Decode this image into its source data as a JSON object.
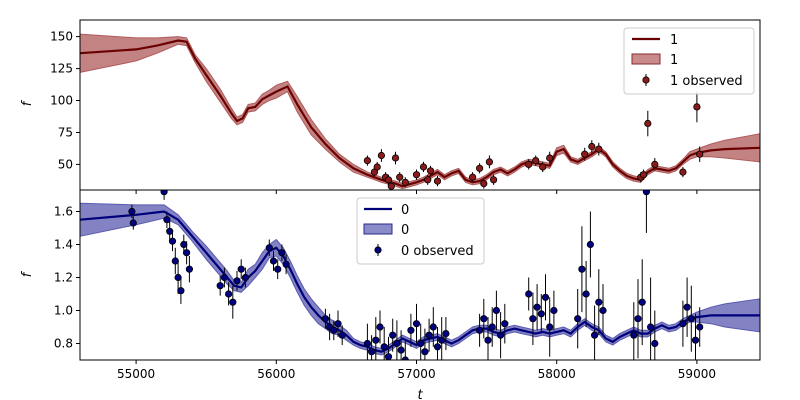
{
  "chart_data": [
    {
      "type": "line",
      "panel": "top",
      "xlabel": "",
      "ylabel": "f",
      "xlim": [
        54600,
        59450
      ],
      "ylim": [
        30,
        163
      ],
      "yticks": [
        50,
        75,
        100,
        125,
        150
      ],
      "grid": false,
      "legend_position": "top-right",
      "legend": {
        "line": "1",
        "band": "1",
        "points": "1 observed"
      },
      "colors": {
        "line": "#6b0000",
        "band": "#b05a5a",
        "points": "#8b1a1a"
      },
      "mean": {
        "x": [
          54600,
          55000,
          55150,
          55300,
          55360,
          55420,
          55500,
          55600,
          55680,
          55720,
          55760,
          55800,
          55850,
          55900,
          55950,
          56000,
          56080,
          56150,
          56250,
          56350,
          56450,
          56550,
          56650,
          56750,
          56850,
          56900,
          57000,
          57050,
          57100,
          57150,
          57200,
          57250,
          57300,
          57350,
          57400,
          57450,
          57500,
          57550,
          57600,
          57650,
          57700,
          57750,
          57800,
          57850,
          57900,
          57950,
          58000,
          58050,
          58100,
          58150,
          58200,
          58250,
          58300,
          58350,
          58400,
          58450,
          58500,
          58550,
          58600,
          58650,
          58700,
          58750,
          58800,
          58850,
          58900,
          58950,
          59000,
          59100,
          59200,
          59450
        ],
        "y": [
          137,
          140,
          143,
          147,
          146,
          133,
          120,
          104,
          90,
          84,
          86,
          94,
          95,
          101,
          104,
          107,
          111,
          97,
          79,
          66,
          55,
          47,
          42,
          38,
          35,
          33,
          36,
          38,
          41,
          44,
          40,
          43,
          45,
          38,
          36,
          37,
          40,
          44,
          46,
          43,
          46,
          50,
          52,
          51,
          50,
          49,
          60,
          62,
          54,
          52,
          55,
          58,
          62,
          58,
          50,
          45,
          41,
          39,
          38,
          44,
          47,
          46,
          45,
          47,
          52,
          57,
          59,
          61,
          62,
          63
        ]
      },
      "band_halfwidth": [
        15,
        9,
        6,
        3,
        3,
        3,
        5,
        5,
        4,
        3,
        3,
        3,
        3,
        4,
        4,
        5,
        4,
        6,
        6,
        4,
        3,
        3,
        2,
        2,
        2,
        2,
        2,
        2,
        2,
        2,
        2,
        2,
        2,
        2,
        2,
        2,
        2,
        2,
        2,
        2,
        2,
        2,
        2,
        2,
        2,
        2,
        3,
        3,
        2,
        2,
        2,
        2,
        2,
        2,
        2,
        2,
        2,
        2,
        2,
        2,
        2,
        2,
        2,
        2,
        2,
        3,
        3,
        5,
        7,
        11
      ],
      "observed": {
        "x": [
          56650,
          56700,
          56720,
          56750,
          56780,
          56800,
          56820,
          56850,
          56880,
          56920,
          57000,
          57050,
          57080,
          57100,
          57150,
          57400,
          57450,
          57480,
          57520,
          57550,
          57800,
          57850,
          57900,
          57950,
          58200,
          58250,
          58300,
          58600,
          58620,
          58650,
          58700,
          58900,
          59000,
          59020
        ],
        "y": [
          53,
          44,
          48,
          57,
          40,
          38,
          33,
          55,
          40,
          36,
          42,
          48,
          38,
          45,
          37,
          40,
          47,
          35,
          52,
          38,
          50,
          53,
          48,
          55,
          58,
          64,
          62,
          40,
          42,
          82,
          50,
          44,
          95,
          58
        ],
        "err": [
          4,
          4,
          4,
          5,
          4,
          4,
          4,
          5,
          4,
          4,
          4,
          4,
          4,
          4,
          4,
          4,
          4,
          4,
          5,
          4,
          4,
          4,
          4,
          5,
          5,
          5,
          5,
          4,
          4,
          10,
          5,
          4,
          12,
          6
        ]
      }
    },
    {
      "type": "line",
      "panel": "bottom",
      "xlabel": "t",
      "ylabel": "f",
      "xlim": [
        54600,
        59450
      ],
      "ylim": [
        0.7,
        1.73
      ],
      "yticks": [
        0.8,
        1.0,
        1.2,
        1.4,
        1.6
      ],
      "xticks": [
        55000,
        56000,
        57000,
        58000,
        59000
      ],
      "grid": false,
      "legend_position": "upper-center",
      "legend": {
        "line": "0",
        "band": "0",
        "points": "0 observed"
      },
      "colors": {
        "line": "#00007a",
        "band": "#5a5ab0",
        "points": "#000080"
      },
      "mean": {
        "x": [
          54600,
          55000,
          55200,
          55300,
          55350,
          55400,
          55500,
          55600,
          55650,
          55700,
          55750,
          55800,
          55850,
          55900,
          55950,
          56000,
          56050,
          56100,
          56150,
          56200,
          56250,
          56300,
          56350,
          56400,
          56450,
          56500,
          56550,
          56600,
          56650,
          56700,
          56750,
          56800,
          56850,
          56900,
          56950,
          57000,
          57050,
          57100,
          57150,
          57200,
          57250,
          57300,
          57350,
          57400,
          57450,
          57500,
          57550,
          57600,
          57650,
          57700,
          57750,
          57800,
          57850,
          57900,
          57950,
          58000,
          58050,
          58100,
          58150,
          58200,
          58250,
          58300,
          58350,
          58400,
          58450,
          58500,
          58550,
          58600,
          58650,
          58700,
          58750,
          58800,
          58850,
          58900,
          58950,
          59000,
          59100,
          59200,
          59450
        ],
        "y": [
          1.55,
          1.58,
          1.6,
          1.55,
          1.5,
          1.45,
          1.35,
          1.25,
          1.2,
          1.15,
          1.14,
          1.2,
          1.24,
          1.3,
          1.36,
          1.38,
          1.33,
          1.25,
          1.16,
          1.08,
          1.02,
          0.97,
          0.93,
          0.9,
          0.88,
          0.85,
          0.81,
          0.79,
          0.78,
          0.76,
          0.75,
          0.77,
          0.8,
          0.83,
          0.81,
          0.79,
          0.82,
          0.83,
          0.84,
          0.82,
          0.8,
          0.82,
          0.85,
          0.88,
          0.89,
          0.89,
          0.87,
          0.86,
          0.88,
          0.89,
          0.88,
          0.87,
          0.86,
          0.87,
          0.86,
          0.87,
          0.88,
          0.86,
          0.9,
          0.93,
          0.9,
          0.88,
          0.83,
          0.81,
          0.84,
          0.86,
          0.88,
          0.86,
          0.86,
          0.89,
          0.91,
          0.89,
          0.9,
          0.93,
          0.95,
          0.96,
          0.97,
          0.97,
          0.97
        ]
      },
      "band_halfwidth": [
        0.1,
        0.06,
        0.04,
        0.03,
        0.03,
        0.03,
        0.04,
        0.04,
        0.04,
        0.03,
        0.03,
        0.05,
        0.04,
        0.05,
        0.04,
        0.05,
        0.05,
        0.05,
        0.05,
        0.05,
        0.05,
        0.05,
        0.04,
        0.04,
        0.03,
        0.03,
        0.02,
        0.02,
        0.02,
        0.02,
        0.02,
        0.02,
        0.02,
        0.02,
        0.02,
        0.02,
        0.02,
        0.02,
        0.02,
        0.02,
        0.02,
        0.02,
        0.02,
        0.02,
        0.02,
        0.02,
        0.02,
        0.02,
        0.02,
        0.02,
        0.02,
        0.02,
        0.02,
        0.02,
        0.02,
        0.02,
        0.02,
        0.02,
        0.02,
        0.02,
        0.02,
        0.02,
        0.02,
        0.02,
        0.02,
        0.02,
        0.02,
        0.02,
        0.02,
        0.02,
        0.02,
        0.02,
        0.02,
        0.02,
        0.02,
        0.03,
        0.05,
        0.07,
        0.1
      ],
      "observed": {
        "x": [
          54970,
          54980,
          55200,
          55220,
          55240,
          55260,
          55280,
          55300,
          55320,
          55340,
          55360,
          55380,
          55600,
          55630,
          55660,
          55690,
          55720,
          55750,
          55780,
          55950,
          55980,
          56010,
          56040,
          56070,
          56350,
          56380,
          56410,
          56440,
          56470,
          56650,
          56680,
          56710,
          56740,
          56770,
          56800,
          56830,
          56860,
          56890,
          56920,
          56960,
          57000,
          57030,
          57060,
          57090,
          57120,
          57150,
          57180,
          57210,
          57450,
          57480,
          57510,
          57540,
          57570,
          57600,
          57630,
          57800,
          57830,
          57860,
          57890,
          57920,
          57950,
          57980,
          58150,
          58180,
          58210,
          58240,
          58270,
          58300,
          58330,
          58550,
          58580,
          58610,
          58640,
          58670,
          58700,
          58900,
          58930,
          58960,
          58990,
          59020
        ],
        "y": [
          1.6,
          1.53,
          1.72,
          1.55,
          1.48,
          1.42,
          1.3,
          1.2,
          1.12,
          1.4,
          1.35,
          1.25,
          1.15,
          1.2,
          1.1,
          1.05,
          1.18,
          1.25,
          1.2,
          1.38,
          1.3,
          1.25,
          1.35,
          1.28,
          0.95,
          0.9,
          0.88,
          0.92,
          0.85,
          0.8,
          0.75,
          0.82,
          0.9,
          0.78,
          0.72,
          0.85,
          0.8,
          0.76,
          0.7,
          0.88,
          0.92,
          0.8,
          0.75,
          0.85,
          0.9,
          0.78,
          0.82,
          0.86,
          0.88,
          0.95,
          0.82,
          0.9,
          1.0,
          0.85,
          0.92,
          1.1,
          0.95,
          1.02,
          0.98,
          1.08,
          0.9,
          1.0,
          0.95,
          1.25,
          1.1,
          1.4,
          0.85,
          1.05,
          1.0,
          0.85,
          0.95,
          1.05,
          1.72,
          0.9,
          0.8,
          0.92,
          1.02,
          0.95,
          0.82,
          0.9
        ],
        "err": [
          0.04,
          0.04,
          0.05,
          0.05,
          0.06,
          0.06,
          0.08,
          0.1,
          0.08,
          0.06,
          0.07,
          0.08,
          0.06,
          0.06,
          0.07,
          0.1,
          0.06,
          0.06,
          0.06,
          0.05,
          0.06,
          0.06,
          0.05,
          0.06,
          0.06,
          0.08,
          0.06,
          0.08,
          0.06,
          0.12,
          0.1,
          0.14,
          0.1,
          0.12,
          0.12,
          0.1,
          0.14,
          0.12,
          0.12,
          0.1,
          0.12,
          0.12,
          0.14,
          0.1,
          0.12,
          0.12,
          0.14,
          0.1,
          0.1,
          0.12,
          0.14,
          0.12,
          0.12,
          0.14,
          0.12,
          0.1,
          0.16,
          0.14,
          0.12,
          0.14,
          0.18,
          0.12,
          0.18,
          0.26,
          0.2,
          0.2,
          0.18,
          0.2,
          0.16,
          0.2,
          0.24,
          0.26,
          0.25,
          0.3,
          0.2,
          0.14,
          0.18,
          0.2,
          0.16,
          0.12
        ]
      }
    }
  ]
}
